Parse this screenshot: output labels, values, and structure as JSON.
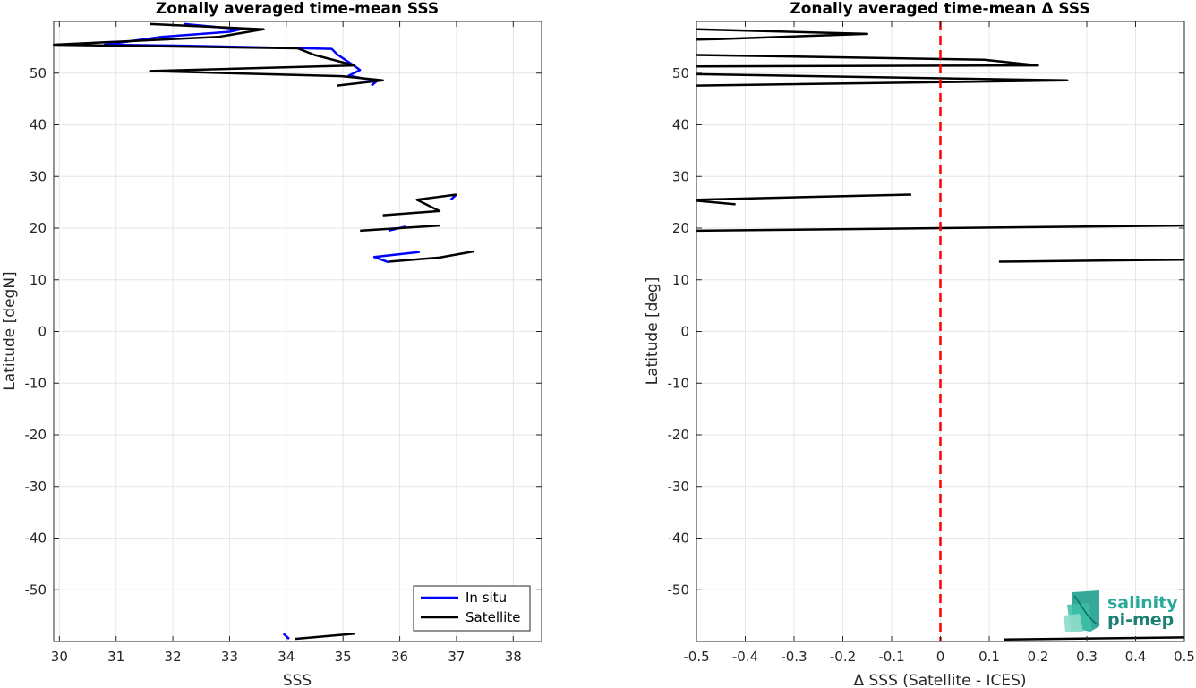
{
  "chart_data": [
    {
      "type": "line",
      "title": "Zonally averaged time-mean SSS",
      "xlabel": "SSS",
      "ylabel": "Latitude [degN]",
      "xlim": [
        29.9,
        38.5
      ],
      "ylim": [
        -60,
        60
      ],
      "xticks": [
        30,
        31,
        32,
        33,
        34,
        35,
        36,
        37,
        38
      ],
      "yticks": [
        -50,
        -40,
        -30,
        -20,
        -10,
        0,
        10,
        20,
        30,
        40,
        50
      ],
      "grid": true,
      "legend": {
        "placement": "bottom-right",
        "entries": [
          "In situ",
          "Satellite"
        ]
      },
      "series": [
        {
          "name": "In situ",
          "color": "#0000ff",
          "segments": [
            [
              [
                32.2,
                59.5
              ],
              [
                33.2,
                58.5
              ],
              [
                33.0,
                58.0
              ],
              [
                31.8,
                57.0
              ],
              [
                30.8,
                55.5
              ],
              [
                32.2,
                55.3
              ],
              [
                34.8,
                54.7
              ],
              [
                34.9,
                53.6
              ],
              [
                35.2,
                51.4
              ],
              [
                35.3,
                50.6
              ],
              [
                35.1,
                49.5
              ],
              [
                35.6,
                48.5
              ],
              [
                35.5,
                47.6
              ]
            ],
            [
              [
                36.9,
                25.5
              ],
              [
                37.0,
                26.5
              ]
            ],
            [
              [
                35.8,
                19.5
              ],
              [
                36.1,
                20.3
              ]
            ],
            [
              [
                36.35,
                15.4
              ],
              [
                35.55,
                14.4
              ],
              [
                35.8,
                13.4
              ]
            ],
            [
              [
                33.95,
                -58.5
              ],
              [
                34.05,
                -59.5
              ]
            ]
          ]
        },
        {
          "name": "Satellite",
          "color": "#000000",
          "segments": [
            [
              [
                31.6,
                59.5
              ],
              [
                33.6,
                58.5
              ],
              [
                32.8,
                57.0
              ],
              [
                29.9,
                55.5
              ],
              [
                34.2,
                54.8
              ],
              [
                34.5,
                53.5
              ],
              [
                35.2,
                51.5
              ],
              [
                31.6,
                50.4
              ],
              [
                35.0,
                49.4
              ],
              [
                35.7,
                48.6
              ],
              [
                34.9,
                47.6
              ]
            ],
            [
              [
                37.0,
                26.5
              ],
              [
                36.3,
                25.5
              ],
              [
                36.7,
                23.3
              ],
              [
                35.7,
                22.5
              ]
            ],
            [
              [
                36.7,
                20.5
              ],
              [
                35.3,
                19.5
              ]
            ],
            [
              [
                37.3,
                15.5
              ],
              [
                36.7,
                14.3
              ],
              [
                35.8,
                13.5
              ]
            ],
            [
              [
                35.2,
                -58.5
              ],
              [
                34.15,
                -59.5
              ]
            ]
          ]
        }
      ]
    },
    {
      "type": "line",
      "title": "Zonally averaged time-mean Δ SSS",
      "xlabel": "Δ SSS (Satellite - ICES)",
      "ylabel": "Latitude [deg]",
      "xlim": [
        -0.5,
        0.5
      ],
      "ylim": [
        -60,
        60
      ],
      "xticks": [
        -0.5,
        -0.4,
        -0.3,
        -0.2,
        -0.1,
        0,
        0.1,
        0.2,
        0.3,
        0.4,
        0.5
      ],
      "yticks": [
        -50,
        -40,
        -30,
        -20,
        -10,
        0,
        10,
        20,
        30,
        40,
        50
      ],
      "grid": true,
      "reference_line": {
        "x": 0,
        "color": "#ff0000",
        "style": "dashed"
      },
      "series": [
        {
          "color": "#000000",
          "segments": [
            [
              [
                -0.5,
                58.5
              ],
              [
                -0.15,
                57.6
              ],
              [
                -0.45,
                56.6
              ],
              [
                -0.5,
                56.5
              ]
            ],
            [
              [
                -0.5,
                53.5
              ],
              [
                0.09,
                52.6
              ],
              [
                0.2,
                51.5
              ],
              [
                -0.5,
                51.3
              ]
            ],
            [
              [
                -0.5,
                49.8
              ],
              [
                0.26,
                48.6
              ],
              [
                -0.5,
                47.6
              ]
            ],
            [
              [
                -0.5,
                25.5
              ],
              [
                -0.06,
                26.5
              ]
            ],
            [
              [
                -0.5,
                25.3
              ],
              [
                -0.42,
                24.6
              ]
            ],
            [
              [
                -0.5,
                19.5
              ],
              [
                0.5,
                20.5
              ]
            ],
            [
              [
                0.12,
                13.5
              ],
              [
                0.5,
                13.9
              ]
            ],
            [
              [
                0.13,
                -59.6
              ],
              [
                0.5,
                -59.2
              ]
            ]
          ]
        }
      ]
    }
  ],
  "logo": {
    "line1": "salinity",
    "line2": "pi-mep"
  }
}
